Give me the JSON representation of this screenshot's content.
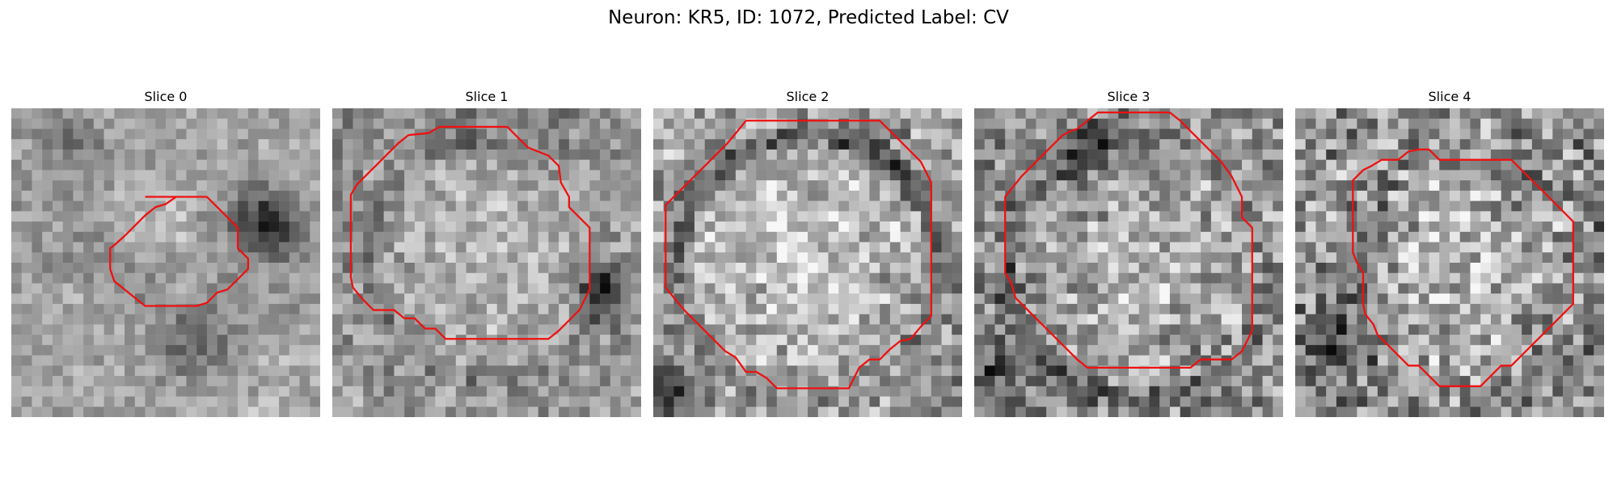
{
  "title": "Neuron: KR5, ID: 1072, Predicted Label: CV",
  "panels": [
    {
      "label": "Slice 0"
    },
    {
      "label": "Slice 1"
    },
    {
      "label": "Slice 2"
    },
    {
      "label": "Slice 3"
    },
    {
      "label": "Slice 4"
    }
  ],
  "colors": {
    "contour": "#ee1111",
    "colormap": "grayscale"
  }
}
